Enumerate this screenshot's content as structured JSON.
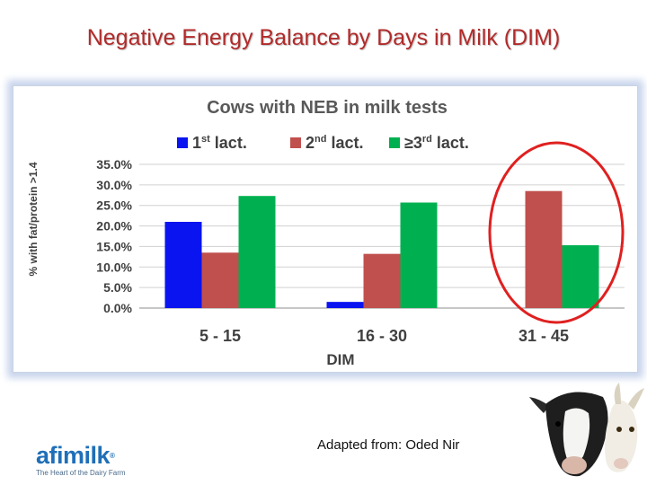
{
  "slide": {
    "title": "Negative Energy Balance by Days in Milk (DIM)",
    "credit": "Adapted from: Oded Nir"
  },
  "logo": {
    "name": "afimilk",
    "registered": "®",
    "tagline": "The Heart of the Dairy Farm"
  },
  "colors": {
    "title": "#b22a2a",
    "highlight_circle": "#e02020"
  },
  "chart_data": {
    "type": "bar",
    "title": "Cows  with NEB in milk tests",
    "xlabel": "DIM",
    "ylabel": "% with fat/protein >1.4",
    "categories": [
      "5 - 15",
      "16 - 30",
      "31 - 45"
    ],
    "ylim": [
      0,
      0.35
    ],
    "yticks": [
      "0.0%",
      "5.0%",
      "10.0%",
      "15.0%",
      "20.0%",
      "25.0%",
      "30.0%",
      "35.0%"
    ],
    "grid": true,
    "legend_position": "top",
    "series": [
      {
        "name": "1st lact.",
        "base": "1",
        "sup": "st",
        "rest": " lact.",
        "color": "#0a14f0",
        "values": [
          0.21,
          0.015,
          0.0
        ]
      },
      {
        "name": "2nd lact.",
        "base": "2",
        "sup": "nd",
        "rest": " lact.",
        "color": "#c0504d",
        "values": [
          0.135,
          0.132,
          0.285
        ]
      },
      {
        "name": "≥3rd lact.",
        "base": "≥3",
        "sup": "rd",
        "rest": " lact.",
        "color": "#00b050",
        "values": [
          0.273,
          0.257,
          0.153
        ]
      }
    ],
    "annotation": {
      "type": "circle",
      "target_category": "31 - 45",
      "color": "#e02020"
    }
  }
}
